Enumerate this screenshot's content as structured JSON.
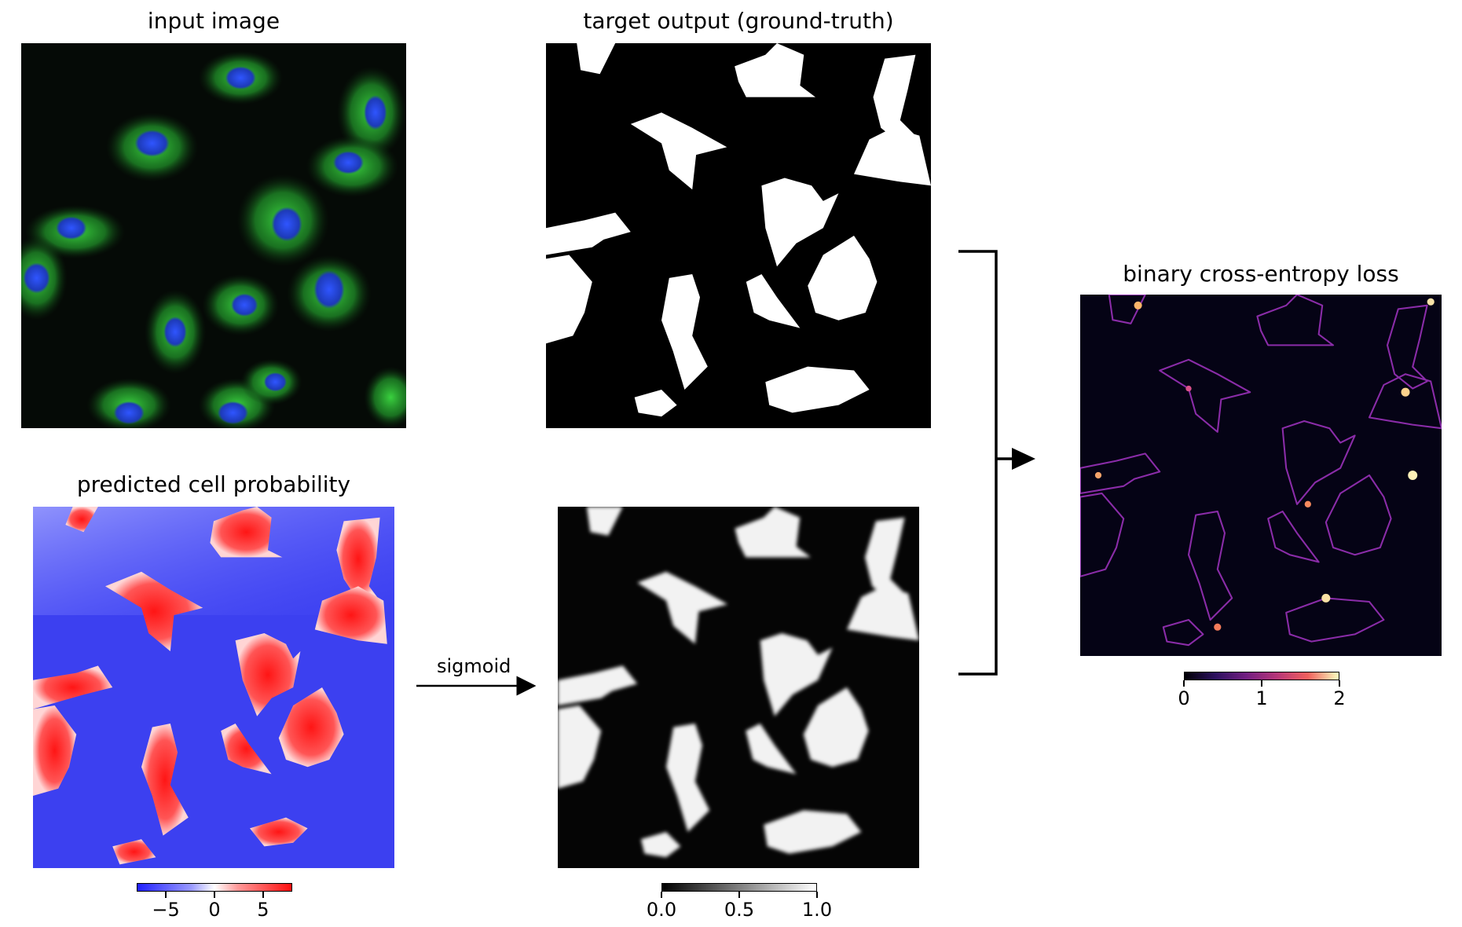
{
  "panels": {
    "input": {
      "title": "input image"
    },
    "target": {
      "title": "target output (ground-truth)"
    },
    "predicted": {
      "title": "predicted cell probability"
    },
    "sigmoid_out": {
      "title": ""
    },
    "loss": {
      "title": "binary cross-entropy loss"
    }
  },
  "arrow_label": "sigmoid",
  "colorbars": {
    "predicted": {
      "colormap": "bwr",
      "ticks": [
        "−5",
        "0",
        "5"
      ],
      "tick_values": [
        -5,
        0,
        5
      ],
      "range": [
        -8,
        8
      ]
    },
    "sigmoid": {
      "colormap": "gray",
      "ticks": [
        "0.0",
        "0.5",
        "1.0"
      ],
      "tick_values": [
        0.0,
        0.5,
        1.0
      ],
      "range": [
        0,
        1
      ]
    },
    "loss": {
      "colormap": "magma",
      "ticks": [
        "0",
        "1",
        "2"
      ],
      "tick_values": [
        0,
        1,
        2
      ],
      "range": [
        0,
        2
      ]
    }
  },
  "colors": {
    "blue": "#3b3bff",
    "red": "#ff2020",
    "cell_green": "#2fbf35",
    "nucleus_blue": "#2a48d6",
    "loss_edge": "#7a2a9e"
  }
}
